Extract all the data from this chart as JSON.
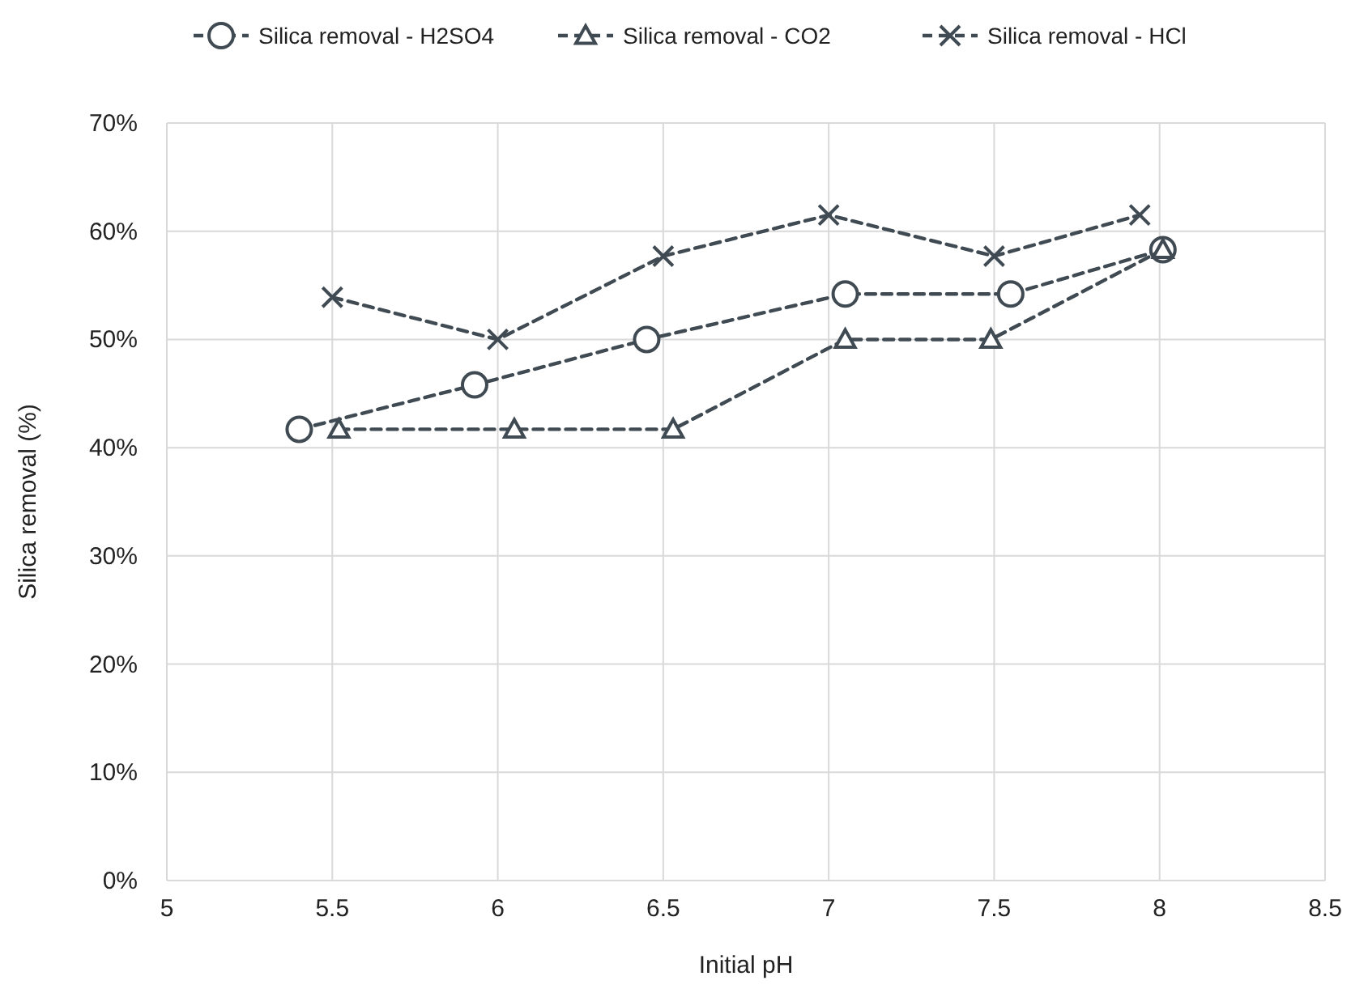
{
  "chart_data": {
    "type": "line",
    "xlabel": "Initial pH",
    "ylabel": "Silica removal (%)",
    "xlim": [
      5,
      8.5
    ],
    "xticks": [
      5,
      5.5,
      6,
      6.5,
      7,
      7.5,
      8,
      8.5
    ],
    "ylim": [
      0,
      70
    ],
    "yticks": [
      {
        "value": 0,
        "label": "0%"
      },
      {
        "value": 10,
        "label": "10%"
      },
      {
        "value": 20,
        "label": "20%"
      },
      {
        "value": 30,
        "label": "30%"
      },
      {
        "value": 40,
        "label": "40%"
      },
      {
        "value": 50,
        "label": "50%"
      },
      {
        "value": 60,
        "label": "60%"
      },
      {
        "value": 70,
        "label": "70%"
      }
    ],
    "grid": true,
    "legend": "top",
    "line_style": "dashed",
    "series": [
      {
        "name": "Silica removal - H2SO4",
        "color": "#3f4a52",
        "marker": "circle",
        "x": [
          5.4,
          5.93,
          6.45,
          7.05,
          7.55,
          8.01
        ],
        "values": [
          41.7,
          45.8,
          50,
          54.2,
          54.2,
          58.3
        ]
      },
      {
        "name": "Silica removal - CO2",
        "color": "#3f4a52",
        "marker": "triangle",
        "x": [
          5.52,
          6.05,
          6.53,
          7.05,
          7.49,
          8.01
        ],
        "values": [
          41.7,
          41.7,
          41.7,
          50,
          50,
          58.3
        ]
      },
      {
        "name": "Silica removal - HCl",
        "color": "#3f4a52",
        "marker": "cross",
        "x": [
          5.5,
          6,
          6.5,
          7,
          7.5,
          7.94
        ],
        "values": [
          53.9,
          50,
          57.7,
          61.5,
          57.7,
          61.5
        ]
      }
    ]
  }
}
